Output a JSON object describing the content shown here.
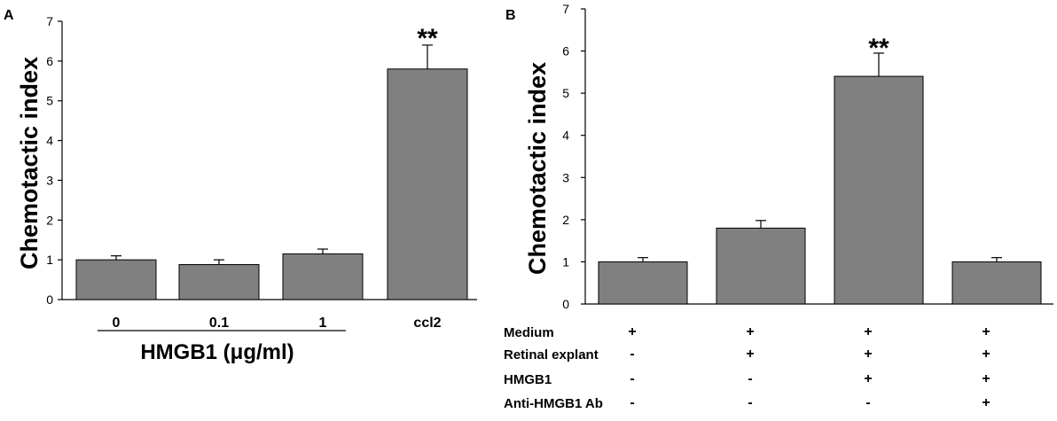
{
  "chart_data": [
    {
      "panel": "A",
      "type": "bar",
      "categories": [
        "0",
        "0.1",
        "1",
        "ccl2"
      ],
      "values": [
        1.0,
        0.88,
        1.15,
        5.8
      ],
      "errors": [
        0.1,
        0.12,
        0.12,
        0.6
      ],
      "significance": [
        "",
        "",
        "",
        "**"
      ],
      "ylabel": "Chemotactic index",
      "xlabel": "HMGB1 (μg/ml)",
      "ylim": [
        0,
        7
      ],
      "yticks": [
        "0",
        "1",
        "2",
        "3",
        "4",
        "5",
        "6",
        "7"
      ],
      "colors": {
        "bar": "#808080",
        "edge": "#000000"
      }
    },
    {
      "panel": "B",
      "type": "bar",
      "values": [
        1.0,
        1.8,
        5.4,
        1.0
      ],
      "errors": [
        0.1,
        0.18,
        0.55,
        0.1
      ],
      "significance": [
        "",
        "",
        "**",
        ""
      ],
      "ylabel": "Chemotactic index",
      "ylim": [
        0,
        7
      ],
      "yticks": [
        "0",
        "1",
        "2",
        "3",
        "4",
        "5",
        "6",
        "7"
      ],
      "condition_rows": [
        {
          "label": "Medium",
          "signs": [
            "+",
            "+",
            "+",
            "+"
          ]
        },
        {
          "label": "Retinal explant",
          "signs": [
            "-",
            "+",
            "+",
            "+"
          ]
        },
        {
          "label": "HMGB1",
          "signs": [
            "-",
            "-",
            "+",
            "+"
          ]
        },
        {
          "label": "Anti-HMGB1 Ab",
          "signs": [
            "-",
            "-",
            "-",
            "+"
          ]
        }
      ],
      "colors": {
        "bar": "#808080",
        "edge": "#000000"
      }
    }
  ]
}
